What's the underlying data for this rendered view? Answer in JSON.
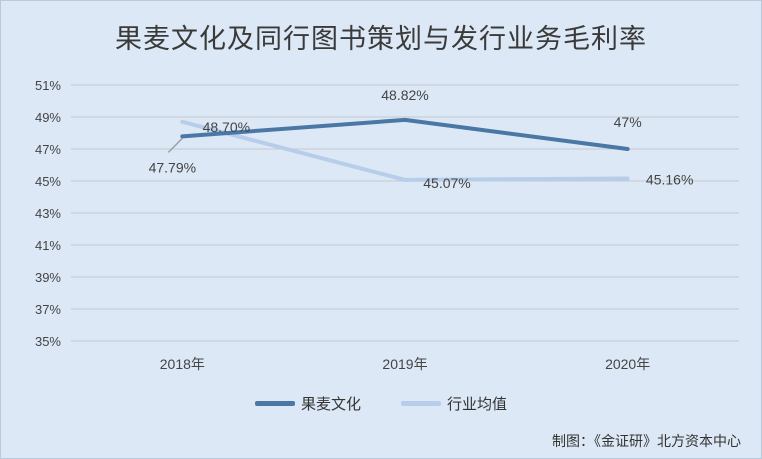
{
  "chart_data": {
    "type": "line",
    "title": "果麦文化及同行图书策划与发行业务毛利率",
    "categories": [
      "2018年",
      "2019年",
      "2020年"
    ],
    "ylim": [
      35,
      51
    ],
    "yticks": [
      "35%",
      "37%",
      "39%",
      "41%",
      "43%",
      "45%",
      "47%",
      "49%",
      "51%"
    ],
    "ytick_values": [
      35,
      37,
      39,
      41,
      43,
      45,
      47,
      49,
      51
    ],
    "series": [
      {
        "name": "果麦文化",
        "values": [
          47.79,
          48.82,
          47.0
        ],
        "labels": [
          "47.79%",
          "48.82%",
          "47%"
        ],
        "color": "#4a77a5"
      },
      {
        "name": "行业均值",
        "values": [
          48.7,
          45.07,
          45.16
        ],
        "labels": [
          "48.70%",
          "45.07%",
          "45.16%"
        ],
        "color": "#b7cdea"
      }
    ],
    "grid": true,
    "legend_position": "bottom"
  },
  "source": "制图：《金证研》北方资本中心"
}
